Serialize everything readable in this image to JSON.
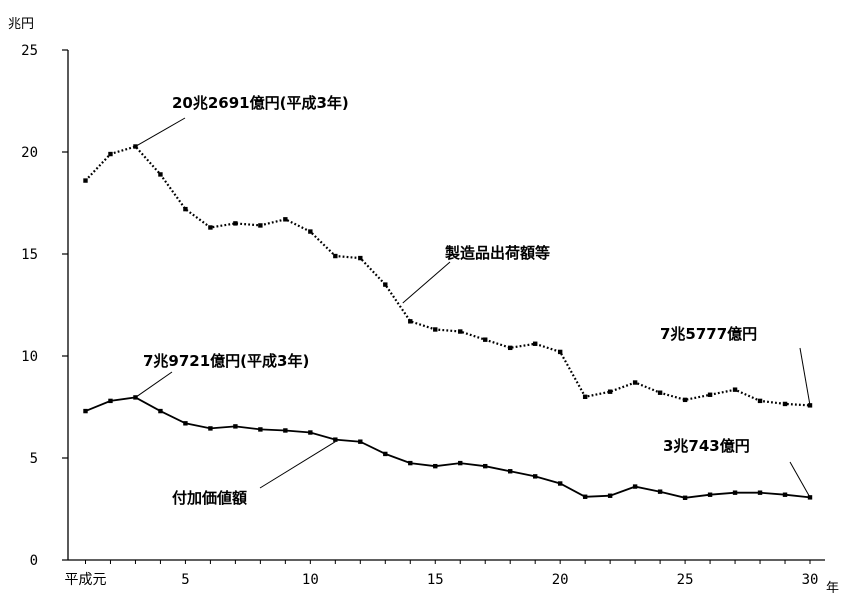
{
  "chart_data": {
    "type": "line",
    "y_unit": "兆円",
    "x_unit": "年",
    "x_tick_labels": [
      "平成元",
      "5",
      "10",
      "15",
      "20",
      "25",
      "30"
    ],
    "y_tick_labels": [
      "0",
      "5",
      "10",
      "15",
      "20",
      "25"
    ],
    "xlim": [
      0.3,
      30.6
    ],
    "ylim": [
      0,
      25
    ],
    "x": [
      1,
      2,
      3,
      4,
      5,
      6,
      7,
      8,
      9,
      10,
      11,
      12,
      13,
      14,
      15,
      16,
      17,
      18,
      19,
      20,
      21,
      22,
      23,
      24,
      25,
      26,
      27,
      28,
      29,
      30
    ],
    "series": [
      {
        "name": "製造品出荷額等",
        "style": "dotted",
        "values": [
          18.6,
          19.9,
          20.27,
          18.9,
          17.2,
          16.3,
          16.5,
          16.4,
          16.7,
          16.1,
          14.9,
          14.8,
          13.5,
          11.7,
          11.3,
          11.2,
          10.8,
          10.4,
          10.6,
          10.2,
          8.0,
          8.25,
          8.7,
          8.2,
          7.85,
          8.1,
          8.35,
          7.8,
          7.65,
          7.58
        ]
      },
      {
        "name": "付加価値額",
        "style": "solid",
        "values": [
          7.3,
          7.8,
          7.97,
          7.3,
          6.7,
          6.45,
          6.55,
          6.4,
          6.35,
          6.25,
          5.9,
          5.8,
          5.2,
          4.75,
          4.6,
          4.75,
          4.6,
          4.35,
          4.1,
          3.75,
          3.1,
          3.15,
          3.6,
          3.35,
          3.05,
          3.2,
          3.3,
          3.3,
          3.2,
          3.07
        ]
      }
    ],
    "annotations": [
      {
        "text": "20兆2691億円(平成3年)"
      },
      {
        "text": "製造品出荷額等"
      },
      {
        "text": "7兆5777億円"
      },
      {
        "text": "7兆9721億円(平成3年)"
      },
      {
        "text": "3兆743億円"
      },
      {
        "text": "付加価値額"
      }
    ],
    "grid": false,
    "legend": "none"
  }
}
